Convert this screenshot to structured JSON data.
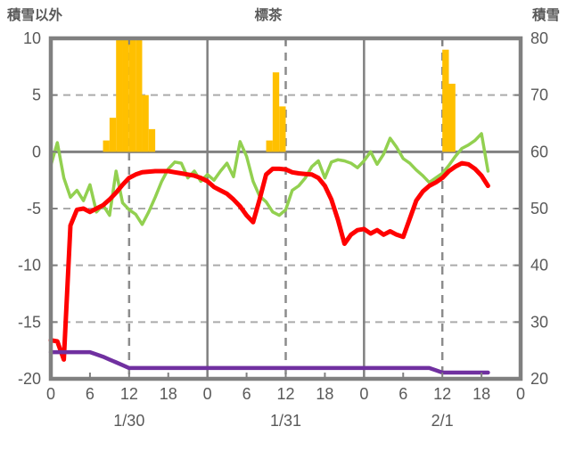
{
  "chart_data": {
    "type": "combo_bar_line",
    "title": "標茶",
    "x_axis": {
      "unit": "hour",
      "total_hours": 72,
      "data_hours": 68,
      "hour_tick_interval": 6,
      "hour_tick_labels": [
        "0",
        "6",
        "12",
        "18",
        "0",
        "6",
        "12",
        "18",
        "0",
        "6",
        "12",
        "18",
        "0"
      ],
      "day_labels": [
        {
          "label": "1/30",
          "hour": 12
        },
        {
          "label": "1/31",
          "hour": 36
        },
        {
          "label": "2/1",
          "hour": 60
        }
      ],
      "day_boundary_hours": [
        24,
        48
      ],
      "noon_dashed_hours": [
        12,
        36,
        60
      ]
    },
    "left_axis": {
      "title": "積雪以外",
      "max": 10,
      "min": -20,
      "ticks": [
        10,
        5,
        0,
        -5,
        -10,
        -15,
        -20
      ],
      "zero_line": 0
    },
    "right_axis": {
      "title": "積雪",
      "max": 80,
      "min": 20,
      "ticks": [
        80,
        70,
        60,
        50,
        40,
        30,
        20
      ]
    },
    "series": [
      {
        "name": "snowfall-bar",
        "type": "bar",
        "axis": "left",
        "color": "#FFC000",
        "values": [
          0,
          0,
          0,
          0,
          0,
          0,
          0,
          0,
          1,
          3,
          10,
          10,
          10,
          10,
          5,
          2,
          0,
          0,
          0,
          0,
          0,
          0,
          0,
          0,
          0,
          0,
          0,
          0,
          0,
          0,
          0,
          0,
          0,
          1,
          7,
          4,
          0,
          0,
          0,
          0,
          0,
          0,
          0,
          0,
          0,
          0,
          0,
          0,
          0,
          0,
          0,
          0,
          0,
          0,
          0,
          0,
          0,
          0,
          0,
          0,
          9,
          6,
          0,
          0,
          0,
          0,
          0,
          0
        ]
      },
      {
        "name": "green-line",
        "type": "line",
        "axis": "left",
        "color": "#92D050",
        "width": 3.5,
        "values": [
          -1.2,
          0.8,
          -2.3,
          -4.0,
          -3.4,
          -4.3,
          -2.9,
          -5.3,
          -4.7,
          -5.6,
          -1.7,
          -4.5,
          -5.1,
          -5.5,
          -6.4,
          -5.3,
          -4.0,
          -2.6,
          -1.5,
          -0.9,
          -1.0,
          -2.3,
          -1.7,
          -2.6,
          -2.0,
          -2.5,
          -1.7,
          -1.0,
          -2.2,
          0.9,
          -0.4,
          -2.6,
          -3.9,
          -4.4,
          -5.3,
          -5.6,
          -5.1,
          -3.4,
          -3.0,
          -2.3,
          -1.3,
          -0.8,
          -2.3,
          -0.9,
          -0.7,
          -0.8,
          -1.0,
          -1.4,
          -0.8,
          0.0,
          -1.1,
          -0.2,
          1.2,
          0.4,
          -0.6,
          -1.0,
          -1.6,
          -2.1,
          -2.7,
          -2.3,
          -1.9,
          -1.2,
          -0.4,
          0.3,
          0.6,
          1.0,
          1.6,
          -1.7
        ]
      },
      {
        "name": "red-line",
        "type": "line",
        "axis": "left",
        "color": "#FF0000",
        "width": 5,
        "values": [
          -16.6,
          -16.7,
          -18.3,
          -6.5,
          -5.1,
          -5.0,
          -5.3,
          -5.0,
          -4.7,
          -4.2,
          -3.6,
          -2.9,
          -2.3,
          -2.0,
          -1.8,
          -1.75,
          -1.7,
          -1.7,
          -1.7,
          -1.8,
          -1.9,
          -2.0,
          -2.1,
          -2.3,
          -2.6,
          -3.1,
          -3.4,
          -3.7,
          -4.2,
          -4.8,
          -5.6,
          -6.2,
          -4.2,
          -2.0,
          -1.5,
          -1.5,
          -1.55,
          -1.8,
          -1.9,
          -1.95,
          -2.0,
          -2.3,
          -3.0,
          -4.2,
          -6.0,
          -8.1,
          -7.3,
          -6.9,
          -6.8,
          -7.2,
          -6.9,
          -7.3,
          -7.0,
          -7.3,
          -7.5,
          -5.9,
          -4.3,
          -3.5,
          -3.0,
          -2.7,
          -2.3,
          -1.7,
          -1.3,
          -1.0,
          -1.1,
          -1.5,
          -2.1,
          -3.0
        ]
      },
      {
        "name": "purple-line",
        "type": "line",
        "axis": "right",
        "color": "#7030A0",
        "width": 4.5,
        "values": [
          24.7,
          24.7,
          24.7,
          24.7,
          24.7,
          24.7,
          24.7,
          24.3,
          23.9,
          23.4,
          22.9,
          22.4,
          21.9,
          21.9,
          21.9,
          21.9,
          21.9,
          21.9,
          21.9,
          21.9,
          21.9,
          21.9,
          21.9,
          21.9,
          21.9,
          21.9,
          21.9,
          21.9,
          21.9,
          21.9,
          21.9,
          21.9,
          21.9,
          21.9,
          21.9,
          21.9,
          21.9,
          21.9,
          21.9,
          21.9,
          21.9,
          21.9,
          21.9,
          21.9,
          21.9,
          21.9,
          21.9,
          21.9,
          21.9,
          21.9,
          21.9,
          21.9,
          21.9,
          21.9,
          21.9,
          21.9,
          21.9,
          21.9,
          21.9,
          21.5,
          21.1,
          21.1,
          21.1,
          21.1,
          21.1,
          21.1,
          21.1,
          21.1
        ]
      }
    ],
    "colors": {
      "axis": "#808080",
      "grid_dashed": "#ABABAB",
      "grid_vertical": "#8C8C8C",
      "text": "#595959",
      "background": "#FFFFFF"
    }
  }
}
